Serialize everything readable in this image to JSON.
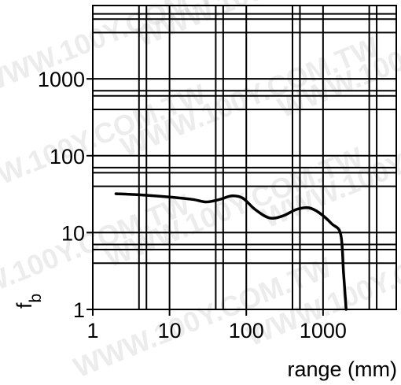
{
  "chart_data": {
    "type": "line",
    "title": "",
    "xlabel": "range (mm)",
    "ylabel": "f",
    "ylabel_subscript": "b",
    "x_scale": "log",
    "y_scale": "log",
    "xlim": [
      1,
      9000
    ],
    "ylim": [
      1,
      9000
    ],
    "grid": true,
    "x_ticks": [
      {
        "value": 1,
        "label": "1"
      },
      {
        "value": 10,
        "label": "10"
      },
      {
        "value": 100,
        "label": "100"
      },
      {
        "value": 1000,
        "label": "1000"
      }
    ],
    "y_ticks": [
      {
        "value": 1,
        "label": "1"
      },
      {
        "value": 10,
        "label": "10"
      },
      {
        "value": 100,
        "label": "100"
      },
      {
        "value": 1000,
        "label": "1000"
      }
    ],
    "x_grid_values": [
      1,
      4,
      5,
      10,
      40,
      50,
      100,
      400,
      500,
      1000,
      4000,
      5000
    ],
    "y_grid_values": [
      1,
      4,
      6,
      7,
      10,
      40,
      60,
      70,
      100,
      400,
      600,
      700,
      1000,
      4000,
      6000,
      7000
    ],
    "series": [
      {
        "color": "#000000",
        "x": [
          2,
          4,
          10,
          20,
          30,
          45,
          65,
          90,
          130,
          200,
          300,
          450,
          650,
          900,
          1300,
          1700,
          1850,
          2000
        ],
        "y": [
          32,
          31,
          29,
          27,
          25,
          27,
          30,
          28,
          20,
          15.5,
          16.5,
          20,
          21,
          18,
          13,
          9.5,
          3,
          1
        ]
      }
    ]
  },
  "watermark": {
    "text": "WWW.100Y.COM.TW"
  }
}
